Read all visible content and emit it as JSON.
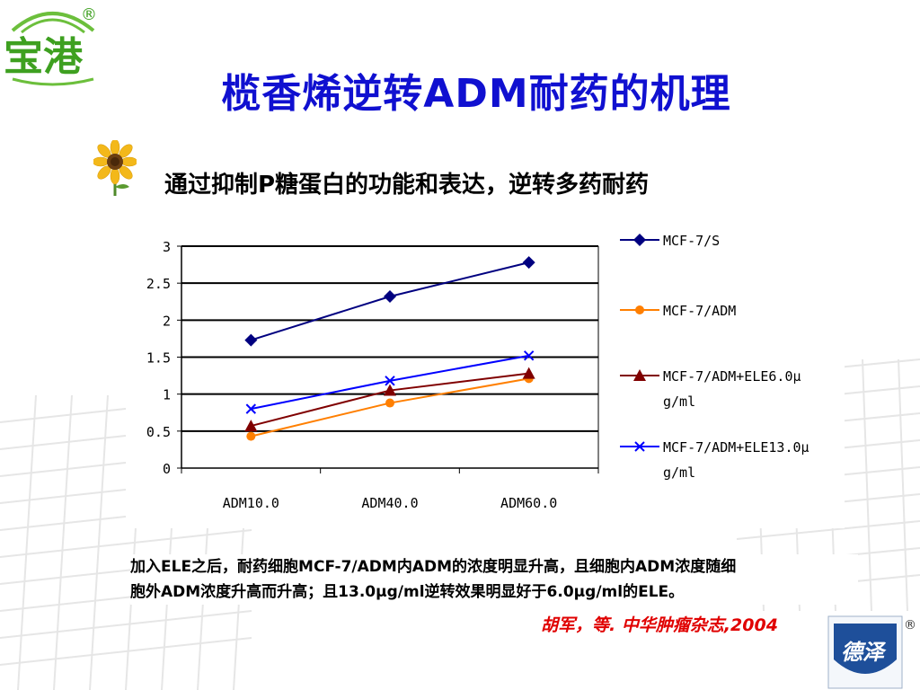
{
  "logo": {
    "text": "宝港",
    "mark": "®"
  },
  "slide": {
    "title": "榄香烯逆转ADM耐药的机理",
    "subtitle": "通过抑制P糖蛋白的功能和表达，逆转多药耐药",
    "note_line1": "加入ELE之后，耐药细胞MCF-7/ADM内ADM的浓度明显升高，且细胞内ADM浓度随细",
    "note_line2": "胞外ADM浓度升高而升高；且13.0μg/ml逆转效果明显好于6.0μg/ml的ELE。",
    "citation": "胡军，等.  中华肿瘤杂志,2004"
  },
  "brand": {
    "text": "德泽",
    "mark": "®"
  },
  "icons": [
    "sunflower-icon",
    "logo-icon",
    "brand-logo-icon"
  ],
  "colors": {
    "title": "#1010d0",
    "citation": "#e00000",
    "grid": "#e8e8e8"
  },
  "chart_data": {
    "type": "line",
    "categories": [
      "ADM10.0",
      "ADM40.0",
      "ADM60.0"
    ],
    "y_ticks": [
      "0",
      "0.5",
      "1",
      "1.5",
      "2",
      "2.5",
      "3"
    ],
    "ylim": [
      0,
      3
    ],
    "grid": true,
    "legend_position": "right",
    "series": [
      {
        "name": "MCF-7/S",
        "legend_lines": [
          "MCF-7/S"
        ],
        "values": [
          1.73,
          2.32,
          2.78
        ],
        "color": "#000080",
        "marker": "diamond"
      },
      {
        "name": "MCF-7/ADM",
        "legend_lines": [
          "MCF-7/ADM"
        ],
        "values": [
          0.43,
          0.88,
          1.21
        ],
        "color": "#ff7f00",
        "marker": "circle"
      },
      {
        "name": "MCF-7/ADM+ELE6.0μg/ml",
        "legend_lines": [
          "MCF-7/ADM+ELE6.0μ",
          "g/ml"
        ],
        "values": [
          0.57,
          1.05,
          1.28
        ],
        "color": "#800000",
        "marker": "triangle"
      },
      {
        "name": "MCF-7/ADM+ELE13.0μg/ml",
        "legend_lines": [
          "MCF-7/ADM+ELE13.0μ",
          "g/ml"
        ],
        "values": [
          0.8,
          1.18,
          1.52
        ],
        "color": "#0000ff",
        "marker": "x"
      }
    ]
  }
}
